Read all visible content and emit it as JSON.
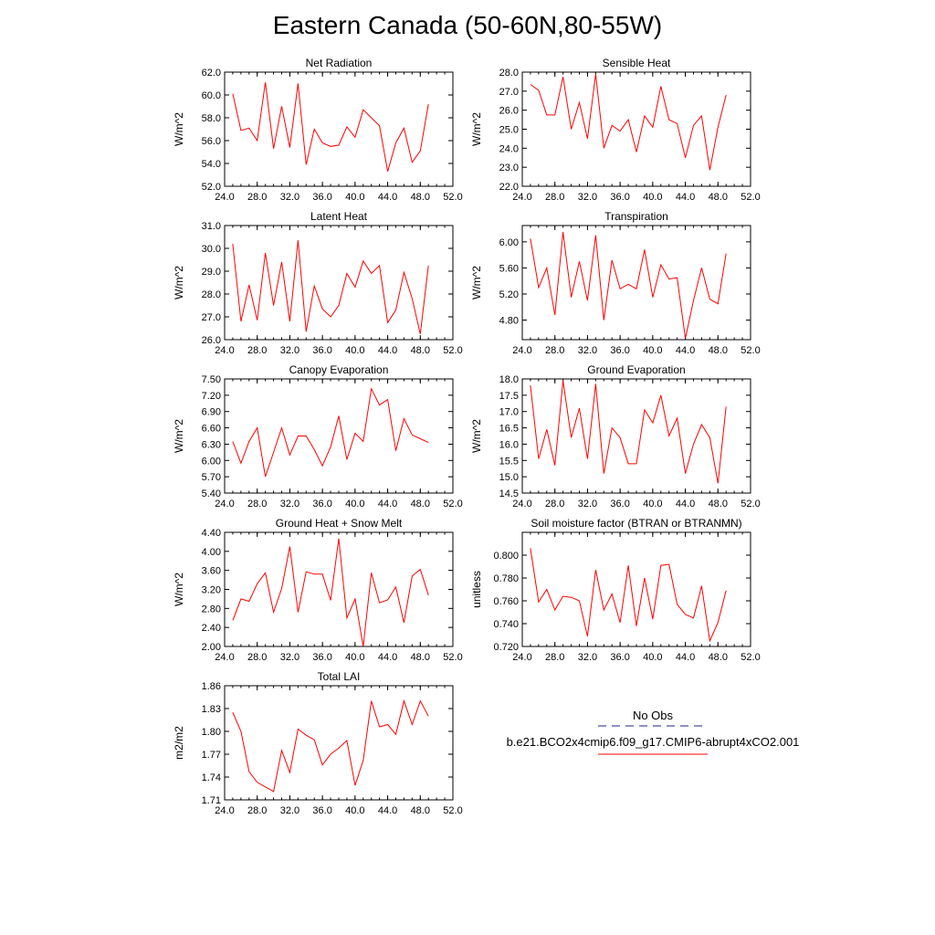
{
  "figure": {
    "title": "Eastern Canada (50-60N,80-55W)"
  },
  "legend": {
    "entries": [
      {
        "label": "No Obs",
        "color": "#1f1f8f",
        "style": "dashed"
      },
      {
        "label": "b.e21.BCO2x4cmip6.f09_g17.CMIP6-abrupt4xCO2.001",
        "color": "#ff0000",
        "style": "solid"
      }
    ]
  },
  "chart_data": [
    {
      "type": "line",
      "title": "Net Radiation",
      "xlabel": "",
      "ylabel": "W/m^2",
      "xlim": [
        24,
        52
      ],
      "ylim": [
        52,
        62
      ],
      "xticks": [
        "24.0",
        "28.0",
        "32.0",
        "36.0",
        "40.0",
        "44.0",
        "48.0",
        "52.0"
      ],
      "yticks": [
        "52.0",
        "54.0",
        "56.0",
        "58.0",
        "60.0",
        "62.0"
      ],
      "x": [
        25,
        26,
        27,
        28,
        29,
        30,
        31,
        32,
        33,
        34,
        35,
        36,
        37,
        38,
        39,
        40,
        41,
        42,
        43,
        44,
        45,
        46,
        47,
        48,
        49
      ],
      "series": [
        {
          "color": "#ff0000",
          "values": [
            60.1,
            56.9,
            57.1,
            56.0,
            61.1,
            55.3,
            59.0,
            55.4,
            61.0,
            53.9,
            57.0,
            55.8,
            55.5,
            55.6,
            57.2,
            56.3,
            58.7,
            58.0,
            57.3,
            53.3,
            55.8,
            57.1,
            54.1,
            55.1,
            59.2
          ]
        }
      ]
    },
    {
      "type": "line",
      "title": "Sensible Heat",
      "xlabel": "",
      "ylabel": "W/m^2",
      "xlim": [
        24,
        52
      ],
      "ylim": [
        22,
        28
      ],
      "xticks": [
        "24.0",
        "28.0",
        "32.0",
        "36.0",
        "40.0",
        "44.0",
        "48.0",
        "52.0"
      ],
      "yticks": [
        "22.0",
        "23.0",
        "24.0",
        "25.0",
        "26.0",
        "27.0",
        "28.0"
      ],
      "x": [
        25,
        26,
        27,
        28,
        29,
        30,
        31,
        32,
        33,
        34,
        35,
        36,
        37,
        38,
        39,
        40,
        41,
        42,
        43,
        44,
        45,
        46,
        47,
        48,
        49
      ],
      "series": [
        {
          "color": "#ff0000",
          "values": [
            27.35,
            27.05,
            25.75,
            25.75,
            27.75,
            25.0,
            26.4,
            24.5,
            27.9,
            24.0,
            25.2,
            24.9,
            25.5,
            23.8,
            25.7,
            25.1,
            27.25,
            25.5,
            25.3,
            23.5,
            25.2,
            25.7,
            22.85,
            25.1,
            26.8
          ]
        }
      ]
    },
    {
      "type": "line",
      "title": "Latent Heat",
      "xlabel": "",
      "ylabel": "W/m^2",
      "xlim": [
        24,
        52
      ],
      "ylim": [
        26,
        31
      ],
      "xticks": [
        "24.0",
        "28.0",
        "32.0",
        "36.0",
        "40.0",
        "44.0",
        "48.0",
        "52.0"
      ],
      "yticks": [
        "26.0",
        "27.0",
        "28.0",
        "29.0",
        "30.0",
        "31.0"
      ],
      "x": [
        25,
        26,
        27,
        28,
        29,
        30,
        31,
        32,
        33,
        34,
        35,
        36,
        37,
        38,
        39,
        40,
        41,
        42,
        43,
        44,
        45,
        46,
        47,
        48,
        49
      ],
      "series": [
        {
          "color": "#ff0000",
          "values": [
            30.2,
            26.8,
            28.4,
            26.85,
            29.8,
            27.5,
            29.4,
            26.8,
            30.35,
            26.35,
            28.35,
            27.35,
            27.0,
            27.5,
            28.9,
            28.3,
            29.45,
            28.9,
            29.25,
            26.75,
            27.3,
            28.95,
            27.8,
            26.25,
            29.25
          ]
        }
      ]
    },
    {
      "type": "line",
      "title": "Transpiration",
      "xlabel": "",
      "ylabel": "W/m^2",
      "xlim": [
        24,
        52
      ],
      "ylim": [
        4.5,
        6.25
      ],
      "xticks": [
        "24.0",
        "28.0",
        "32.0",
        "36.0",
        "40.0",
        "44.0",
        "48.0",
        "52.0"
      ],
      "yticks": [
        "4.80",
        "5.20",
        "5.60",
        "6.00"
      ],
      "yticks_values": [
        4.8,
        5.2,
        5.6,
        6.0
      ],
      "x": [
        25,
        26,
        27,
        28,
        29,
        30,
        31,
        32,
        33,
        34,
        35,
        36,
        37,
        38,
        39,
        40,
        41,
        42,
        43,
        44,
        45,
        46,
        47,
        48,
        49
      ],
      "series": [
        {
          "color": "#ff0000",
          "values": [
            6.05,
            5.3,
            5.6,
            4.88,
            6.15,
            5.15,
            5.7,
            5.1,
            6.1,
            4.8,
            5.72,
            5.28,
            5.35,
            5.28,
            5.88,
            5.15,
            5.65,
            5.43,
            5.45,
            4.52,
            5.1,
            5.6,
            5.12,
            5.05,
            5.82
          ]
        }
      ]
    },
    {
      "type": "line",
      "title": "Canopy Evaporation",
      "xlabel": "",
      "ylabel": "W/m^2",
      "xlim": [
        24,
        52
      ],
      "ylim": [
        5.4,
        7.5
      ],
      "xticks": [
        "24.0",
        "28.0",
        "32.0",
        "36.0",
        "40.0",
        "44.0",
        "48.0",
        "52.0"
      ],
      "yticks": [
        "5.40",
        "5.70",
        "6.00",
        "6.30",
        "6.60",
        "6.90",
        "7.20",
        "7.50"
      ],
      "x": [
        25,
        26,
        27,
        28,
        29,
        30,
        31,
        32,
        33,
        34,
        35,
        36,
        37,
        38,
        39,
        40,
        41,
        42,
        43,
        44,
        45,
        46,
        47,
        48,
        49
      ],
      "series": [
        {
          "color": "#ff0000",
          "values": [
            6.35,
            5.95,
            6.35,
            6.6,
            5.7,
            6.15,
            6.6,
            6.1,
            6.45,
            6.45,
            6.2,
            5.9,
            6.25,
            6.82,
            6.02,
            6.5,
            6.35,
            7.32,
            7.02,
            7.12,
            6.18,
            6.77,
            6.47,
            6.4,
            6.33
          ]
        }
      ]
    },
    {
      "type": "line",
      "title": "Ground Evaporation",
      "xlabel": "",
      "ylabel": "W/m^2",
      "xlim": [
        24,
        52
      ],
      "ylim": [
        14.5,
        18
      ],
      "xticks": [
        "24.0",
        "28.0",
        "32.0",
        "36.0",
        "40.0",
        "44.0",
        "48.0",
        "52.0"
      ],
      "yticks": [
        "14.5",
        "15.0",
        "15.5",
        "16.0",
        "16.5",
        "17.0",
        "17.5",
        "18.0"
      ],
      "x": [
        25,
        26,
        27,
        28,
        29,
        30,
        31,
        32,
        33,
        34,
        35,
        36,
        37,
        38,
        39,
        40,
        41,
        42,
        43,
        44,
        45,
        46,
        47,
        48,
        49
      ],
      "series": [
        {
          "color": "#ff0000",
          "values": [
            17.8,
            15.55,
            16.45,
            15.35,
            17.95,
            16.2,
            17.1,
            15.55,
            17.85,
            15.1,
            16.5,
            16.2,
            15.4,
            15.4,
            17.05,
            16.65,
            17.5,
            16.25,
            16.8,
            15.1,
            16.0,
            16.6,
            16.2,
            14.8,
            17.15
          ]
        }
      ]
    },
    {
      "type": "line",
      "title": "Ground Heat + Snow Melt",
      "xlabel": "",
      "ylabel": "W/m^2",
      "xlim": [
        24,
        52
      ],
      "ylim": [
        2.0,
        4.4
      ],
      "xticks": [
        "24.0",
        "28.0",
        "32.0",
        "36.0",
        "40.0",
        "44.0",
        "48.0",
        "52.0"
      ],
      "yticks": [
        "2.00",
        "2.40",
        "2.80",
        "3.20",
        "3.60",
        "4.00",
        "4.40"
      ],
      "x": [
        25,
        26,
        27,
        28,
        29,
        30,
        31,
        32,
        33,
        34,
        35,
        36,
        37,
        38,
        39,
        40,
        41,
        42,
        43,
        44,
        45,
        46,
        47,
        48,
        49
      ],
      "series": [
        {
          "color": "#ff0000",
          "values": [
            2.55,
            3.0,
            2.95,
            3.32,
            3.55,
            2.72,
            3.22,
            4.1,
            2.72,
            3.57,
            3.52,
            3.52,
            2.97,
            4.27,
            2.6,
            3.0,
            2.0,
            3.55,
            2.92,
            2.98,
            3.25,
            2.5,
            3.48,
            3.62,
            3.08
          ]
        }
      ]
    },
    {
      "type": "line",
      "title": "Soil moisture factor (BTRAN or BTRANMN)",
      "xlabel": "",
      "ylabel": "unitless",
      "xlim": [
        24,
        52
      ],
      "ylim": [
        0.72,
        0.82
      ],
      "xticks": [
        "24.0",
        "28.0",
        "32.0",
        "36.0",
        "40.0",
        "44.0",
        "48.0",
        "52.0"
      ],
      "yticks": [
        "0.720",
        "0.740",
        "0.760",
        "0.780",
        "0.800"
      ],
      "yticks_values": [
        0.72,
        0.74,
        0.76,
        0.78,
        0.8
      ],
      "x": [
        25,
        26,
        27,
        28,
        29,
        30,
        31,
        32,
        33,
        34,
        35,
        36,
        37,
        38,
        39,
        40,
        41,
        42,
        43,
        44,
        45,
        46,
        47,
        48,
        49
      ],
      "series": [
        {
          "color": "#ff0000",
          "values": [
            0.806,
            0.759,
            0.77,
            0.752,
            0.764,
            0.763,
            0.76,
            0.729,
            0.787,
            0.752,
            0.766,
            0.741,
            0.791,
            0.738,
            0.78,
            0.744,
            0.791,
            0.792,
            0.757,
            0.748,
            0.745,
            0.773,
            0.725,
            0.741,
            0.769
          ]
        }
      ]
    },
    {
      "type": "line",
      "title": "Total LAI",
      "xlabel": "",
      "ylabel": "m2/m2",
      "xlim": [
        24,
        52
      ],
      "ylim": [
        1.71,
        1.86
      ],
      "xticks": [
        "24.0",
        "28.0",
        "32.0",
        "36.0",
        "40.0",
        "44.0",
        "48.0",
        "52.0"
      ],
      "yticks": [
        "1.71",
        "1.74",
        "1.77",
        "1.80",
        "1.83",
        "1.86"
      ],
      "x": [
        25,
        26,
        27,
        28,
        29,
        30,
        31,
        32,
        33,
        34,
        35,
        36,
        37,
        38,
        39,
        40,
        41,
        42,
        43,
        44,
        45,
        46,
        47,
        48,
        49
      ],
      "series": [
        {
          "color": "#ff0000",
          "values": [
            1.825,
            1.8,
            1.747,
            1.733,
            1.727,
            1.721,
            1.775,
            1.746,
            1.803,
            1.795,
            1.789,
            1.756,
            1.77,
            1.778,
            1.788,
            1.729,
            1.762,
            1.84,
            1.806,
            1.809,
            1.796,
            1.84,
            1.809,
            1.84,
            1.82
          ]
        }
      ]
    }
  ]
}
